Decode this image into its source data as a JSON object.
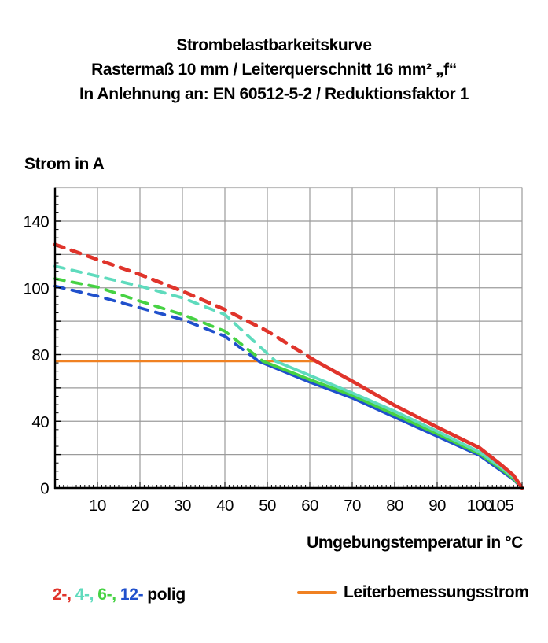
{
  "title": {
    "line1": "Strombelastbarkeitskurve",
    "line2": "Rastermaß 10 mm / Leiterquerschnitt 16 mm² „f“",
    "line3": "In Anlehnung an: EN 60512-5-2 / Reduktionsfaktor 1"
  },
  "legend_left": {
    "items": [
      {
        "label": "2-,",
        "color": "#e0342b"
      },
      {
        "label": "4-,",
        "color": "#5fdbbd"
      },
      {
        "label": "6-,",
        "color": "#46d243"
      },
      {
        "label": "12-",
        "color": "#2050cc"
      },
      {
        "label": "polig",
        "color": "#000000"
      }
    ]
  },
  "chart_data": {
    "type": "line",
    "title": "Strombelastbarkeitskurve",
    "xlabel": "Umgebungstemperatur in °C",
    "ylabel": "Strom in A",
    "xlim": [
      0,
      110
    ],
    "x_tick_labels": [
      10,
      20,
      30,
      40,
      50,
      60,
      70,
      80,
      90,
      100,
      105
    ],
    "y_gridline_values": [
      140,
      120,
      100,
      90,
      80,
      60,
      40,
      20,
      0
    ],
    "y_tick_labels": [
      140,
      100,
      80,
      40,
      0
    ],
    "grid": true,
    "grid_color": "#9b9b9b",
    "axis_color": "#000000",
    "rated_current": {
      "label": "Leiterbemessungsstrom",
      "value": 76,
      "x_start": 0,
      "x_end": 61.5,
      "color": "#f08122"
    },
    "note": "curves are dashed above the rated current (76 A) and solid below it",
    "series": [
      {
        "name": "12-polig",
        "color": "#2050cc",
        "dashed_until": 48,
        "points": [
          [
            0,
            101
          ],
          [
            10,
            97.5
          ],
          [
            20,
            94
          ],
          [
            30,
            90.5
          ],
          [
            40,
            85.5
          ],
          [
            48,
            76
          ],
          [
            60,
            63.5
          ],
          [
            70,
            54
          ],
          [
            80,
            42.5
          ],
          [
            90,
            31
          ],
          [
            100,
            19.5
          ],
          [
            105,
            10.5
          ],
          [
            108,
            5
          ],
          [
            110,
            0
          ]
        ]
      },
      {
        "name": "6-polig",
        "color": "#46d243",
        "dashed_until": 49,
        "points": [
          [
            0,
            105.5
          ],
          [
            10,
            100.5
          ],
          [
            20,
            96
          ],
          [
            30,
            92
          ],
          [
            40,
            87
          ],
          [
            49,
            76
          ],
          [
            60,
            65
          ],
          [
            70,
            55.5
          ],
          [
            80,
            44
          ],
          [
            90,
            32.5
          ],
          [
            100,
            20.5
          ],
          [
            105,
            11.5
          ],
          [
            108,
            5.5
          ],
          [
            110,
            0
          ]
        ]
      },
      {
        "name": "4-polig",
        "color": "#5fdbbd",
        "dashed_until": 52,
        "points": [
          [
            0,
            113
          ],
          [
            10,
            107
          ],
          [
            20,
            101
          ],
          [
            30,
            97
          ],
          [
            40,
            92
          ],
          [
            52,
            76
          ],
          [
            60,
            67.5
          ],
          [
            70,
            57
          ],
          [
            80,
            46
          ],
          [
            90,
            34
          ],
          [
            100,
            21.5
          ],
          [
            105,
            12.5
          ],
          [
            108,
            6.5
          ],
          [
            110,
            0
          ]
        ]
      },
      {
        "name": "2-polig",
        "color": "#e0342b",
        "dashed_until": 61.5,
        "points": [
          [
            0,
            126
          ],
          [
            10,
            117
          ],
          [
            20,
            108
          ],
          [
            30,
            99
          ],
          [
            40,
            93.5
          ],
          [
            50,
            87
          ],
          [
            61.5,
            76
          ],
          [
            70,
            64
          ],
          [
            80,
            49.5
          ],
          [
            90,
            36.5
          ],
          [
            100,
            24
          ],
          [
            105,
            14
          ],
          [
            108,
            7.5
          ],
          [
            110,
            0
          ]
        ]
      }
    ],
    "legend_position": "bottom"
  }
}
